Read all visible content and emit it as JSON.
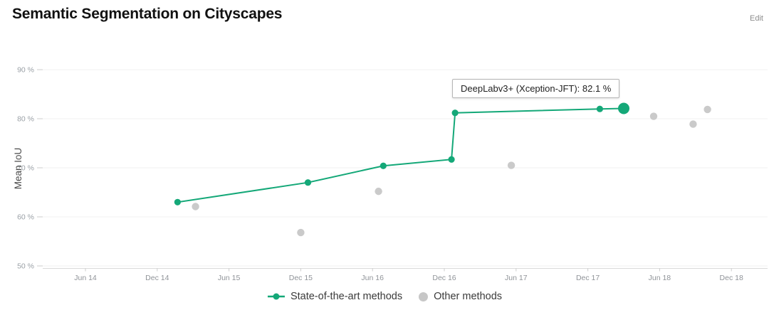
{
  "page": {
    "title": "Semantic Segmentation on Cityscapes",
    "edit_label": "Edit"
  },
  "tooltip": {
    "text": "DeepLabv3+ (Xception-JFT): 82.1 %"
  },
  "legend": {
    "sota_label": "State-of-the-art methods",
    "other_label": "Other methods"
  },
  "colors": {
    "sota_green": "#14a878",
    "other_gray": "#c7c7c7",
    "axis_line": "#d9d9d9",
    "tick_mark": "#cccccc",
    "grid_line": "#f0f0f1",
    "tick_label": "#9aa0a6",
    "axis_title": "#4a4a4a"
  },
  "chart_data": {
    "type": "line",
    "title": "Semantic Segmentation on Cityscapes",
    "xlabel": "",
    "ylabel": "Mean IoU",
    "y_ticks": [
      90,
      80,
      70,
      60,
      50
    ],
    "y_tick_suffix": " %",
    "ylim": [
      50,
      90
    ],
    "x_ticks": [
      "Jun 14",
      "Dec 14",
      "Jun 15",
      "Dec 15",
      "Jun 16",
      "Dec 16",
      "Jun 17",
      "Dec 17",
      "Jun 18",
      "Dec 18"
    ],
    "x_tick_months": [
      0,
      6,
      12,
      18,
      24,
      30,
      36,
      42,
      48,
      54
    ],
    "xlim_months": [
      -3.6,
      57
    ],
    "grid": "horizontal-only",
    "legend_position": "bottom-center",
    "series": [
      {
        "name": "Other methods",
        "style": "markers",
        "color_key": "other_gray",
        "points": [
          {
            "x_months": 9.2,
            "approx_date": "Mar 2015",
            "mean_iou": 62.1
          },
          {
            "x_months": 18.0,
            "approx_date": "Dec 2015",
            "mean_iou": 56.8
          },
          {
            "x_months": 24.5,
            "approx_date": "Jun 2016",
            "mean_iou": 65.2
          },
          {
            "x_months": 35.6,
            "approx_date": "May 2017",
            "mean_iou": 70.5
          },
          {
            "x_months": 47.5,
            "approx_date": "May 2018",
            "mean_iou": 80.5
          },
          {
            "x_months": 50.8,
            "approx_date": "Aug 2018",
            "mean_iou": 78.9
          },
          {
            "x_months": 52.0,
            "approx_date": "Oct 2018",
            "mean_iou": 81.9
          }
        ]
      },
      {
        "name": "State-of-the-art methods",
        "style": "line+markers",
        "color_key": "sota_green",
        "highlight_index": 6,
        "points": [
          {
            "x_months": 7.7,
            "approx_date": "Jan 2015",
            "mean_iou": 63.0
          },
          {
            "x_months": 18.6,
            "approx_date": "Dec 2015",
            "mean_iou": 67.0
          },
          {
            "x_months": 24.9,
            "approx_date": "Jul 2016",
            "mean_iou": 70.4
          },
          {
            "x_months": 30.6,
            "approx_date": "Dec 2016",
            "mean_iou": 71.7
          },
          {
            "x_months": 30.9,
            "approx_date": "Dec 2016",
            "mean_iou": 81.2
          },
          {
            "x_months": 43.0,
            "approx_date": "Jan 2018",
            "mean_iou": 82.0
          },
          {
            "x_months": 45.0,
            "approx_date": "Mar 2018",
            "mean_iou": 82.1,
            "label": "DeepLabv3+ (Xception-JFT)"
          }
        ]
      }
    ]
  }
}
